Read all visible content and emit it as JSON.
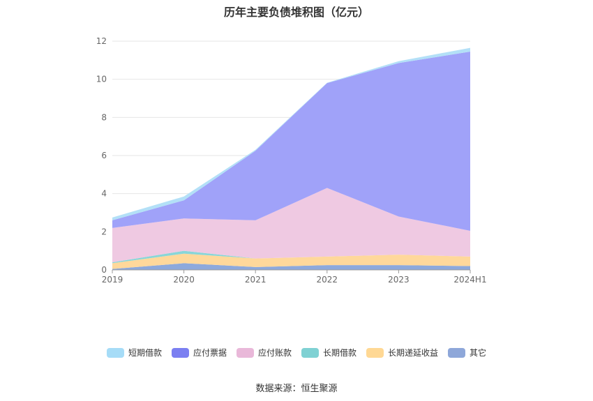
{
  "chart_data": {
    "type": "area",
    "stacked": true,
    "title": "历年主要负债堆积图（亿元）",
    "categories": [
      "2019",
      "2020",
      "2021",
      "2022",
      "2023",
      "2024H1"
    ],
    "ylim": [
      0,
      12
    ],
    "yticks": [
      "0",
      "2",
      "4",
      "6",
      "8",
      "10",
      "12"
    ],
    "grid": true,
    "legend_position": "bottom",
    "series": [
      {
        "name": "其它",
        "color": "#8da9dc",
        "values": [
          0.05,
          0.35,
          0.15,
          0.25,
          0.25,
          0.2
        ]
      },
      {
        "name": "长期递延收益",
        "color": "#ffd89b",
        "values": [
          0.3,
          0.5,
          0.45,
          0.45,
          0.55,
          0.5
        ]
      },
      {
        "name": "长期借款",
        "color": "#89d6d8",
        "values": [
          0.05,
          0.15,
          0.0,
          0.0,
          0.0,
          0.0
        ]
      },
      {
        "name": "应付账款",
        "color": "#efc9e2",
        "values": [
          1.8,
          1.7,
          2.0,
          3.6,
          2.0,
          1.35
        ]
      },
      {
        "name": "应付票据",
        "color": "#a0a2f9",
        "values": [
          0.4,
          0.95,
          3.65,
          5.5,
          8.05,
          9.4
        ]
      },
      {
        "name": "短期借款",
        "color": "#b3e0f7",
        "values": [
          0.15,
          0.2,
          0.05,
          0.02,
          0.1,
          0.2
        ]
      }
    ]
  },
  "legend": [
    {
      "label": "短期借款",
      "color": "#a6dcf7"
    },
    {
      "label": "应付票据",
      "color": "#7b7ff1"
    },
    {
      "label": "应付账款",
      "color": "#e9b8d9"
    },
    {
      "label": "长期借款",
      "color": "#7fd1d3"
    },
    {
      "label": "长期递延收益",
      "color": "#ffd894"
    },
    {
      "label": "其它",
      "color": "#8ea7d9"
    }
  ],
  "source": "数据来源：恒生聚源"
}
